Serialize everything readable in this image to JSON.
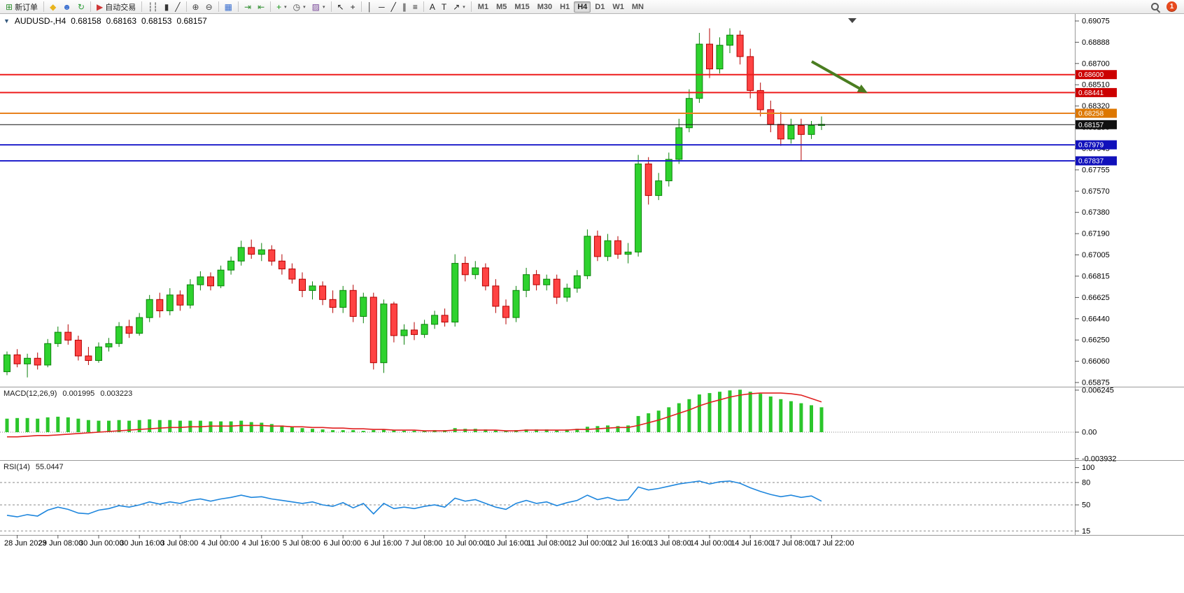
{
  "toolbar": {
    "groups": [
      {
        "name": "orders",
        "items": [
          {
            "name": "new-order-button",
            "icon": "new-order-icon",
            "glyph": "⊞",
            "color": "#2f8f2f",
            "label": "新订单"
          }
        ]
      },
      {
        "name": "launchers",
        "items": [
          {
            "name": "metaeditor-button",
            "icon": "metaeditor-icon",
            "glyph": "◆",
            "color": "#e8b41e"
          },
          {
            "name": "market-button",
            "icon": "profile-icon",
            "glyph": "☻",
            "color": "#3a6fd0"
          },
          {
            "name": "refresh-button",
            "icon": "refresh-icon",
            "glyph": "↻",
            "color": "#2e9e3a"
          }
        ]
      },
      {
        "name": "autotrading",
        "items": [
          {
            "name": "autotrading-button",
            "icon": "autotrading-icon",
            "glyph": "▶",
            "color": "#cf3535",
            "label": "自动交易"
          }
        ]
      },
      {
        "name": "chart-type",
        "items": [
          {
            "name": "bar-chart-button",
            "icon": "bar-chart-icon",
            "glyph": "┆┆",
            "color": "#333333"
          },
          {
            "name": "candlestick-button",
            "icon": "candlestick-icon",
            "glyph": "▮",
            "color": "#333333"
          },
          {
            "name": "line-chart-button",
            "icon": "line-chart-icon",
            "glyph": "╱",
            "color": "#333333"
          }
        ]
      },
      {
        "name": "zoom",
        "items": [
          {
            "name": "zoom-in-button",
            "icon": "zoom-in-icon",
            "glyph": "⊕",
            "color": "#444444"
          },
          {
            "name": "zoom-out-button",
            "icon": "zoom-out-icon",
            "glyph": "⊖",
            "color": "#444444"
          }
        ]
      },
      {
        "name": "windows",
        "items": [
          {
            "name": "tile-windows-button",
            "icon": "tile-windows-icon",
            "glyph": "▦",
            "color": "#3a6fd0"
          }
        ]
      },
      {
        "name": "scrolling",
        "items": [
          {
            "name": "auto-scroll-button",
            "icon": "auto-scroll-icon",
            "glyph": "⇥",
            "color": "#2e8e2e"
          },
          {
            "name": "chart-shift-button",
            "icon": "chart-shift-icon",
            "glyph": "⇤",
            "color": "#2e8e2e"
          }
        ]
      },
      {
        "name": "chart-menus",
        "items": [
          {
            "name": "indicators-button",
            "icon": "indicators-icon",
            "glyph": "+",
            "color": "#169616",
            "caret": true
          },
          {
            "name": "periods-button",
            "icon": "periods-icon",
            "glyph": "◷",
            "color": "#444444",
            "caret": true
          },
          {
            "name": "templates-button",
            "icon": "templates-icon",
            "glyph": "▨",
            "color": "#7a4a9a",
            "caret": true
          }
        ]
      },
      {
        "name": "pointer",
        "items": [
          {
            "name": "cursor-button",
            "icon": "cursor-icon",
            "glyph": "↖",
            "color": "#222222"
          },
          {
            "name": "crosshair-button",
            "icon": "crosshair-icon",
            "glyph": "+",
            "color": "#222222"
          }
        ]
      },
      {
        "name": "line-studies",
        "items": [
          {
            "name": "vertical-line-button",
            "icon": "vertical-line-icon",
            "glyph": "│",
            "color": "#222222"
          },
          {
            "name": "horizontal-line-button",
            "icon": "horizontal-line-icon",
            "glyph": "─",
            "color": "#222222"
          },
          {
            "name": "trendline-button",
            "icon": "trendline-icon",
            "glyph": "╱",
            "color": "#222222"
          },
          {
            "name": "channel-button",
            "icon": "channel-icon",
            "glyph": "∥",
            "color": "#222222"
          },
          {
            "name": "fibonacci-button",
            "icon": "fibonacci-icon",
            "glyph": "≡",
            "color": "#222222"
          }
        ]
      },
      {
        "name": "text-tools",
        "items": [
          {
            "name": "text-button",
            "icon": "text-icon",
            "glyph": "A",
            "color": "#222222"
          },
          {
            "name": "label-button",
            "icon": "label-icon",
            "glyph": "T",
            "color": "#222222"
          },
          {
            "name": "arrows-button",
            "icon": "arrows-icon",
            "glyph": "↗",
            "color": "#222222",
            "caret": true
          }
        ]
      }
    ],
    "timeframes": {
      "items": [
        "M1",
        "M5",
        "M15",
        "M30",
        "H1",
        "H4",
        "D1",
        "W1",
        "MN"
      ],
      "active": "H4"
    },
    "right": {
      "notification_count": "1"
    }
  },
  "chart": {
    "symbol_line": {
      "caret": "▼",
      "symbol": "AUDUSD-,H4",
      "open": "0.68158",
      "high": "0.68163",
      "low": "0.68153",
      "close": "0.68157"
    }
  },
  "chart_data": {
    "type": "candlestick",
    "symbol": "AUDUSD",
    "timeframe": "H4",
    "price_axis": {
      "max": 0.69075,
      "min": 0.65875,
      "labels": [
        "0.69075",
        "0.68888",
        "0.68700",
        "0.68510",
        "0.68320",
        "0.68130",
        "0.67945",
        "0.67755",
        "0.67570",
        "0.67380",
        "0.67190",
        "0.67005",
        "0.66815",
        "0.66625",
        "0.66440",
        "0.66250",
        "0.66060",
        "0.65875"
      ]
    },
    "time_axis": {
      "labels": [
        "28 Jun 2023",
        "29 Jun 08:00",
        "30 Jun 00:00",
        "30 Jun 16:00",
        "3 Jul 08:00",
        "4 Jul 00:00",
        "4 Jul 16:00",
        "5 Jul 08:00",
        "6 Jul 00:00",
        "6 Jul 16:00",
        "7 Jul 08:00",
        "10 Jul 00:00",
        "10 Jul 16:00",
        "11 Jul 08:00",
        "12 Jul 00:00",
        "12 Jul 16:00",
        "13 Jul 08:00",
        "14 Jul 00:00",
        "14 Jul 16:00",
        "17 Jul 08:00",
        "17 Jul 22:00"
      ]
    },
    "candles": [
      [
        0.6597,
        0.6615,
        0.6594,
        0.6612
      ],
      [
        0.6612,
        0.6617,
        0.6601,
        0.6604
      ],
      [
        0.6604,
        0.6613,
        0.6592,
        0.6609
      ],
      [
        0.6609,
        0.6614,
        0.6599,
        0.6603
      ],
      [
        0.6603,
        0.6626,
        0.6601,
        0.6622
      ],
      [
        0.6622,
        0.6637,
        0.6619,
        0.6632
      ],
      [
        0.6632,
        0.6639,
        0.6621,
        0.6625
      ],
      [
        0.6625,
        0.6629,
        0.6607,
        0.6611
      ],
      [
        0.6611,
        0.6619,
        0.6603,
        0.6607
      ],
      [
        0.6607,
        0.6623,
        0.6605,
        0.6619
      ],
      [
        0.6619,
        0.6627,
        0.6615,
        0.6622
      ],
      [
        0.6622,
        0.6641,
        0.6619,
        0.6637
      ],
      [
        0.6637,
        0.6643,
        0.6627,
        0.6631
      ],
      [
        0.6631,
        0.6649,
        0.6629,
        0.6645
      ],
      [
        0.6645,
        0.6665,
        0.6641,
        0.6661
      ],
      [
        0.6661,
        0.6667,
        0.6645,
        0.6651
      ],
      [
        0.6651,
        0.6671,
        0.6647,
        0.6665
      ],
      [
        0.6665,
        0.6669,
        0.6651,
        0.6656
      ],
      [
        0.6656,
        0.6679,
        0.6653,
        0.6674
      ],
      [
        0.6674,
        0.6686,
        0.6669,
        0.6681
      ],
      [
        0.6681,
        0.6685,
        0.6669,
        0.6673
      ],
      [
        0.6673,
        0.6691,
        0.6671,
        0.6687
      ],
      [
        0.6687,
        0.6699,
        0.6683,
        0.6695
      ],
      [
        0.6695,
        0.6713,
        0.6691,
        0.6707
      ],
      [
        0.6707,
        0.6714,
        0.6697,
        0.6701
      ],
      [
        0.6701,
        0.6711,
        0.6695,
        0.6705
      ],
      [
        0.6705,
        0.6709,
        0.6691,
        0.6695
      ],
      [
        0.6695,
        0.6701,
        0.6683,
        0.6688
      ],
      [
        0.6688,
        0.6693,
        0.6675,
        0.6679
      ],
      [
        0.6679,
        0.6685,
        0.6663,
        0.6669
      ],
      [
        0.6669,
        0.6677,
        0.6661,
        0.6673
      ],
      [
        0.6673,
        0.6677,
        0.6656,
        0.6661
      ],
      [
        0.6661,
        0.6669,
        0.6649,
        0.6654
      ],
      [
        0.6654,
        0.6673,
        0.6649,
        0.6669
      ],
      [
        0.6669,
        0.6674,
        0.6641,
        0.6646
      ],
      [
        0.6646,
        0.6667,
        0.664,
        0.6663
      ],
      [
        0.6663,
        0.6667,
        0.6599,
        0.6605
      ],
      [
        0.6605,
        0.6661,
        0.6596,
        0.6657
      ],
      [
        0.6657,
        0.6659,
        0.6623,
        0.6629
      ],
      [
        0.6629,
        0.6639,
        0.6621,
        0.6634
      ],
      [
        0.6634,
        0.6641,
        0.6625,
        0.663
      ],
      [
        0.663,
        0.6643,
        0.6627,
        0.6639
      ],
      [
        0.6639,
        0.6651,
        0.6635,
        0.6647
      ],
      [
        0.6647,
        0.6653,
        0.6637,
        0.6641
      ],
      [
        0.6641,
        0.6701,
        0.6637,
        0.6693
      ],
      [
        0.6693,
        0.6699,
        0.6677,
        0.6683
      ],
      [
        0.6683,
        0.6695,
        0.6679,
        0.6689
      ],
      [
        0.6689,
        0.6693,
        0.6669,
        0.6673
      ],
      [
        0.6673,
        0.6679,
        0.6649,
        0.6655
      ],
      [
        0.6655,
        0.6661,
        0.6639,
        0.6645
      ],
      [
        0.6645,
        0.6673,
        0.6641,
        0.6669
      ],
      [
        0.6669,
        0.6689,
        0.6663,
        0.6683
      ],
      [
        0.6683,
        0.6687,
        0.6669,
        0.6674
      ],
      [
        0.6674,
        0.6683,
        0.6669,
        0.6679
      ],
      [
        0.6679,
        0.6683,
        0.6657,
        0.6663
      ],
      [
        0.6663,
        0.6675,
        0.6659,
        0.6671
      ],
      [
        0.6671,
        0.6687,
        0.6667,
        0.6682
      ],
      [
        0.6682,
        0.6723,
        0.6679,
        0.6717
      ],
      [
        0.6717,
        0.6722,
        0.6695,
        0.6699
      ],
      [
        0.6699,
        0.6719,
        0.6695,
        0.6713
      ],
      [
        0.6713,
        0.6717,
        0.6697,
        0.6701
      ],
      [
        0.6701,
        0.6711,
        0.6693,
        0.6703
      ],
      [
        0.6703,
        0.6789,
        0.6699,
        0.6781
      ],
      [
        0.6781,
        0.6787,
        0.6745,
        0.6753
      ],
      [
        0.6753,
        0.6773,
        0.6749,
        0.6766
      ],
      [
        0.6766,
        0.6791,
        0.6761,
        0.6785
      ],
      [
        0.6785,
        0.6821,
        0.6781,
        0.6813
      ],
      [
        0.6813,
        0.6847,
        0.6809,
        0.6839
      ],
      [
        0.6839,
        0.6897,
        0.6835,
        0.6887
      ],
      [
        0.6887,
        0.6901,
        0.6857,
        0.6865
      ],
      [
        0.6865,
        0.6893,
        0.6861,
        0.6886
      ],
      [
        0.6886,
        0.6901,
        0.6879,
        0.6895
      ],
      [
        0.6895,
        0.6899,
        0.6869,
        0.6876
      ],
      [
        0.6876,
        0.6883,
        0.6839,
        0.6846
      ],
      [
        0.6846,
        0.6853,
        0.6823,
        0.6829
      ],
      [
        0.6829,
        0.6837,
        0.6809,
        0.6816
      ],
      [
        0.6816,
        0.6827,
        0.6797,
        0.6803
      ],
      [
        0.6803,
        0.6821,
        0.6799,
        0.6815
      ],
      [
        0.6815,
        0.6821,
        0.6784,
        0.6807
      ],
      [
        0.6807,
        0.6819,
        0.6803,
        0.6815
      ],
      [
        0.6815,
        0.6823,
        0.6811,
        0.6816
      ]
    ],
    "levels": [
      {
        "name": "resistance-1",
        "label": "0.68600",
        "price": 0.686,
        "color": "#ee1c1c",
        "badge": "#cc0000",
        "width": 2
      },
      {
        "name": "resistance-2",
        "label": "0.68441",
        "price": 0.68441,
        "color": "#ee1c1c",
        "badge": "#cc0000",
        "width": 2
      },
      {
        "name": "pivot",
        "label": "0.68258",
        "price": 0.68258,
        "color": "#e8821e",
        "badge": "#dd7700",
        "width": 2
      },
      {
        "name": "current-price",
        "label": "0.68157",
        "price": 0.68157,
        "color": "#111111",
        "badge": "#111111",
        "width": 1
      },
      {
        "name": "support-1",
        "label": "0.67979",
        "price": 0.67979,
        "color": "#2222cc",
        "badge": "#1111bb",
        "width": 2
      },
      {
        "name": "support-2",
        "label": "0.67837",
        "price": 0.67837,
        "color": "#2222cc",
        "badge": "#1111bb",
        "width": 2
      }
    ],
    "indicators": [
      {
        "type": "macd",
        "title": "MACD(12,26,9)",
        "values": [
          0.001995,
          0.003223
        ],
        "values_text": [
          "0.001995",
          "0.003223"
        ],
        "axis": [
          {
            "label": "0.006245",
            "value": 0.006245
          },
          {
            "label": "0.00",
            "value": 0
          },
          {
            "label": "-0.003932",
            "value": -0.003932
          }
        ],
        "histogram": [
          0.002,
          0.0021,
          0.0021,
          0.002,
          0.0022,
          0.0023,
          0.0022,
          0.002,
          0.0018,
          0.0017,
          0.0017,
          0.0018,
          0.0017,
          0.0018,
          0.0019,
          0.0018,
          0.0018,
          0.0017,
          0.0017,
          0.0017,
          0.0016,
          0.0016,
          0.0016,
          0.0017,
          0.0015,
          0.0014,
          0.0012,
          0.001,
          0.0008,
          0.0006,
          0.0005,
          0.0004,
          0.0003,
          0.0003,
          0.0003,
          0.0002,
          0.0003,
          0.0004,
          0.0003,
          0.0002,
          0.0002,
          0.0002,
          0.0003,
          0.0003,
          0.0006,
          0.0005,
          0.0005,
          0.0004,
          0.0003,
          0.0002,
          0.0003,
          0.0004,
          0.0004,
          0.0004,
          0.0003,
          0.0004,
          0.0005,
          0.0008,
          0.0009,
          0.001,
          0.0009,
          0.001,
          0.0024,
          0.0028,
          0.0032,
          0.0037,
          0.0043,
          0.0049,
          0.0056,
          0.0058,
          0.006,
          0.0062,
          0.0063,
          0.006,
          0.0057,
          0.0053,
          0.0049,
          0.0046,
          0.0043,
          0.004,
          0.0037
        ],
        "signal": [
          -0.0007,
          -0.0007,
          -0.0006,
          -0.0005,
          -0.0005,
          -0.0004,
          -0.0003,
          -0.0002,
          -0.0001,
          0.0,
          0.0001,
          0.0002,
          0.0003,
          0.0004,
          0.0005,
          0.0006,
          0.0007,
          0.0007,
          0.0008,
          0.0008,
          0.0009,
          0.0009,
          0.0009,
          0.001,
          0.001,
          0.001,
          0.0009,
          0.0009,
          0.0008,
          0.0008,
          0.0007,
          0.0007,
          0.0006,
          0.0006,
          0.0005,
          0.0005,
          0.0004,
          0.0004,
          0.0003,
          0.0003,
          0.0003,
          0.0002,
          0.0002,
          0.0002,
          0.0003,
          0.0003,
          0.0003,
          0.0003,
          0.0003,
          0.0002,
          0.0002,
          0.0003,
          0.0003,
          0.0003,
          0.0003,
          0.0003,
          0.0004,
          0.0004,
          0.0005,
          0.0006,
          0.0007,
          0.0007,
          0.001,
          0.0014,
          0.0018,
          0.0023,
          0.0028,
          0.0033,
          0.0039,
          0.0044,
          0.0048,
          0.0052,
          0.0055,
          0.0057,
          0.0058,
          0.0058,
          0.0058,
          0.0057,
          0.0055,
          0.005,
          0.0045
        ]
      },
      {
        "type": "rsi",
        "title": "RSI(14)",
        "value": 55.0447,
        "values_text": [
          "55.0447"
        ],
        "axis_labels": [
          "100",
          "80",
          "50",
          "15"
        ],
        "levels": [
          80,
          50,
          15
        ],
        "series": [
          36,
          34,
          37,
          35,
          43,
          47,
          44,
          39,
          38,
          43,
          45,
          49,
          47,
          50,
          54,
          51,
          54,
          52,
          56,
          58,
          55,
          58,
          60,
          63,
          60,
          61,
          58,
          56,
          54,
          52,
          54,
          50,
          48,
          53,
          46,
          52,
          38,
          52,
          45,
          47,
          45,
          48,
          50,
          47,
          59,
          55,
          57,
          52,
          47,
          44,
          52,
          56,
          52,
          54,
          49,
          53,
          56,
          63,
          57,
          60,
          56,
          57,
          74,
          70,
          72,
          75,
          78,
          80,
          82,
          78,
          81,
          82,
          79,
          73,
          68,
          64,
          61,
          63,
          60,
          62,
          55
        ]
      }
    ],
    "annotations": [
      {
        "type": "arrow",
        "from": [
          1160,
          88
        ],
        "to": [
          1240,
          133
        ],
        "color": "#4a7d20"
      },
      {
        "type": "shift-marker",
        "x": 1218,
        "y": 26
      }
    ],
    "style": {
      "background": "#ffffff",
      "up_fill": "#2ed22e",
      "up_stroke": "#0c820c",
      "down_fill": "#ff4343",
      "down_stroke": "#b40000",
      "rsi_color": "#1e86dd",
      "macd_signal_color": "#e02020",
      "macd_hist_color": "#2bc62b",
      "separator_color": "#9a9a9a",
      "axis_text": "#000000"
    }
  }
}
